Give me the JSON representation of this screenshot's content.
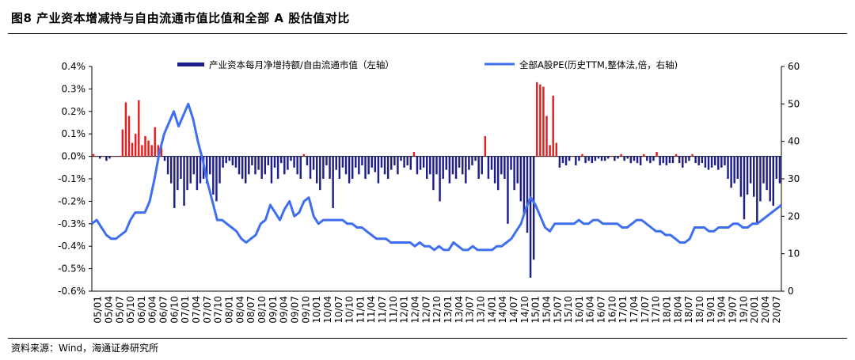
{
  "header": {
    "title": "图8  产业资本增减持与自由流通市值比值和全部 A 股估值对比"
  },
  "footer": {
    "source": "资料来源：Wind，海通证券研究所"
  },
  "colors": {
    "bar_negative": "#1f1f8a",
    "bar_positive": "#e02020",
    "line": "#3d6ff0",
    "axis": "#000000"
  },
  "chart_data": {
    "type": "bar+line",
    "title": "图8  产业资本增减持与自由流通市值比值和全部 A 股估值对比",
    "left_axis": {
      "min": -0.6,
      "max": 0.4,
      "step": 0.1,
      "tick_labels": [
        "0.4%",
        "0.3%",
        "0.2%",
        "0.1%",
        "0.0%",
        "-0.1%",
        "-0.2%",
        "-0.3%",
        "-0.4%",
        "-0.5%",
        "-0.6%"
      ]
    },
    "right_axis": {
      "min": 0,
      "max": 60,
      "step": 10,
      "tick_labels": [
        "60",
        "50",
        "40",
        "30",
        "20",
        "10",
        "0"
      ]
    },
    "x_tick_labels": [
      "05/01",
      "05/04",
      "05/07",
      "05/10",
      "06/01",
      "06/04",
      "06/07",
      "06/10",
      "07/01",
      "07/04",
      "07/07",
      "07/10",
      "08/01",
      "08/04",
      "08/07",
      "08/10",
      "09/01",
      "09/04",
      "09/07",
      "09/10",
      "10/01",
      "10/04",
      "10/07",
      "10/10",
      "11/01",
      "11/04",
      "11/07",
      "11/10",
      "12/01",
      "12/04",
      "12/07",
      "12/10",
      "13/01",
      "13/04",
      "13/07",
      "13/10",
      "14/01",
      "14/04",
      "14/07",
      "14/10",
      "15/01",
      "15/04",
      "15/07",
      "15/10",
      "16/01",
      "16/04",
      "16/07",
      "16/10",
      "17/01",
      "17/04",
      "17/07",
      "17/10",
      "18/01",
      "18/04",
      "18/07",
      "18/10",
      "19/01",
      "19/04",
      "19/07",
      "19/10",
      "20/01",
      "20/04",
      "20/07"
    ],
    "series": [
      {
        "name": "产业资本每月净增持额/自由流通市值（左轴）",
        "type": "bar",
        "axis": "left",
        "values_percent": [
          0.01,
          0.0,
          -0.01,
          0.0,
          -0.02,
          -0.01,
          0.0,
          0.0,
          0.0,
          0.12,
          0.24,
          0.18,
          0.06,
          0.1,
          0.25,
          0.05,
          0.09,
          0.07,
          0.05,
          0.13,
          0.05,
          0.04,
          -0.02,
          -0.08,
          -0.12,
          -0.23,
          -0.15,
          -0.1,
          -0.22,
          -0.15,
          -0.12,
          -0.08,
          -0.15,
          -0.12,
          -0.1,
          -0.12,
          -0.08,
          -0.17,
          -0.2,
          -0.12,
          -0.05,
          -0.03,
          -0.02,
          -0.04,
          -0.05,
          -0.08,
          -0.1,
          -0.12,
          -0.08,
          -0.04,
          -0.08,
          -0.06,
          -0.1,
          -0.08,
          -0.04,
          -0.12,
          -0.05,
          -0.1,
          -0.03,
          -0.08,
          -0.06,
          -0.02,
          -0.05,
          -0.08,
          -0.1,
          0.01,
          -0.04,
          -0.1,
          -0.06,
          -0.12,
          -0.15,
          -0.1,
          -0.04,
          -0.1,
          -0.23,
          -0.06,
          -0.1,
          -0.05,
          -0.08,
          -0.12,
          -0.1,
          -0.05,
          -0.08,
          -0.04,
          -0.1,
          -0.08,
          -0.05,
          -0.07,
          -0.12,
          -0.05,
          -0.08,
          -0.1,
          -0.06,
          -0.04,
          -0.08,
          -0.02,
          -0.05,
          -0.04,
          -0.06,
          0.02,
          -0.08,
          -0.06,
          -0.05,
          -0.1,
          -0.08,
          -0.15,
          -0.08,
          -0.2,
          -0.1,
          -0.06,
          -0.12,
          -0.08,
          -0.1,
          -0.05,
          -0.08,
          -0.12,
          -0.06,
          -0.04,
          -0.02,
          -0.1,
          -0.08,
          0.09,
          -0.1,
          -0.06,
          -0.12,
          -0.15,
          -0.08,
          -0.1,
          -0.3,
          -0.06,
          -0.15,
          -0.12,
          -0.2,
          -0.26,
          -0.34,
          -0.54,
          -0.46,
          0.33,
          0.32,
          0.31,
          0.18,
          0.05,
          0.27,
          0.06,
          -0.05,
          -0.03,
          -0.04,
          -0.02,
          0.0,
          -0.04,
          -0.02,
          0.01,
          -0.03,
          -0.02,
          -0.03,
          -0.02,
          -0.01,
          -0.02,
          -0.02,
          -0.01,
          0.0,
          -0.02,
          -0.01,
          0.01,
          -0.02,
          -0.01,
          -0.03,
          -0.02,
          -0.03,
          -0.04,
          0.01,
          -0.02,
          -0.03,
          -0.02,
          0.02,
          -0.04,
          -0.03,
          -0.04,
          -0.03,
          -0.03,
          0.01,
          -0.03,
          -0.05,
          -0.03,
          -0.02,
          0.01,
          -0.03,
          -0.04,
          -0.03,
          -0.05,
          -0.06,
          -0.05,
          -0.04,
          -0.06,
          -0.05,
          -0.04,
          -0.1,
          -0.14,
          -0.12,
          -0.1,
          -0.18,
          -0.28,
          -0.17,
          -0.12,
          -0.18,
          -0.3,
          -0.2,
          -0.12,
          -0.15,
          -0.2,
          -0.22,
          -0.1,
          -0.12
        ]
      },
      {
        "name": "全部A股PE(历史TTM,整体法,倍，右轴)",
        "type": "line",
        "axis": "right",
        "values": [
          18,
          19,
          17,
          15,
          14,
          14,
          15,
          16,
          19,
          21,
          21,
          21,
          24,
          30,
          37,
          42,
          45,
          48,
          44,
          47,
          50,
          46,
          40,
          35,
          29,
          24,
          19,
          19,
          18,
          17,
          16,
          14,
          13,
          14,
          15,
          18,
          19,
          23,
          21,
          19,
          22,
          24,
          20,
          21,
          24,
          25,
          20,
          18,
          19,
          19,
          19,
          19,
          19,
          18,
          18,
          17,
          17,
          16,
          15,
          14,
          14,
          14,
          13,
          13,
          13,
          13,
          13,
          12,
          13,
          12,
          12,
          11,
          12,
          11,
          11,
          13,
          12,
          11,
          11,
          12,
          11,
          11,
          11,
          11,
          12,
          12,
          13,
          14,
          16,
          18,
          22,
          25,
          23,
          20,
          17,
          16,
          18,
          18,
          18,
          18,
          18,
          19,
          18,
          18,
          19,
          19,
          18,
          18,
          18,
          18,
          17,
          17,
          18,
          19,
          19,
          18,
          17,
          16,
          16,
          15,
          15,
          14,
          13,
          13,
          14,
          17,
          17,
          17,
          16,
          16,
          17,
          17,
          17,
          18,
          18,
          17,
          17,
          18,
          18,
          19,
          20,
          21,
          22,
          23
        ]
      }
    ],
    "legend": [
      "产业资本每月净增持额/自由流通市值（左轴）",
      "全部A股PE(历史TTM,整体法,倍，右轴)"
    ],
    "legend_position": "top"
  }
}
